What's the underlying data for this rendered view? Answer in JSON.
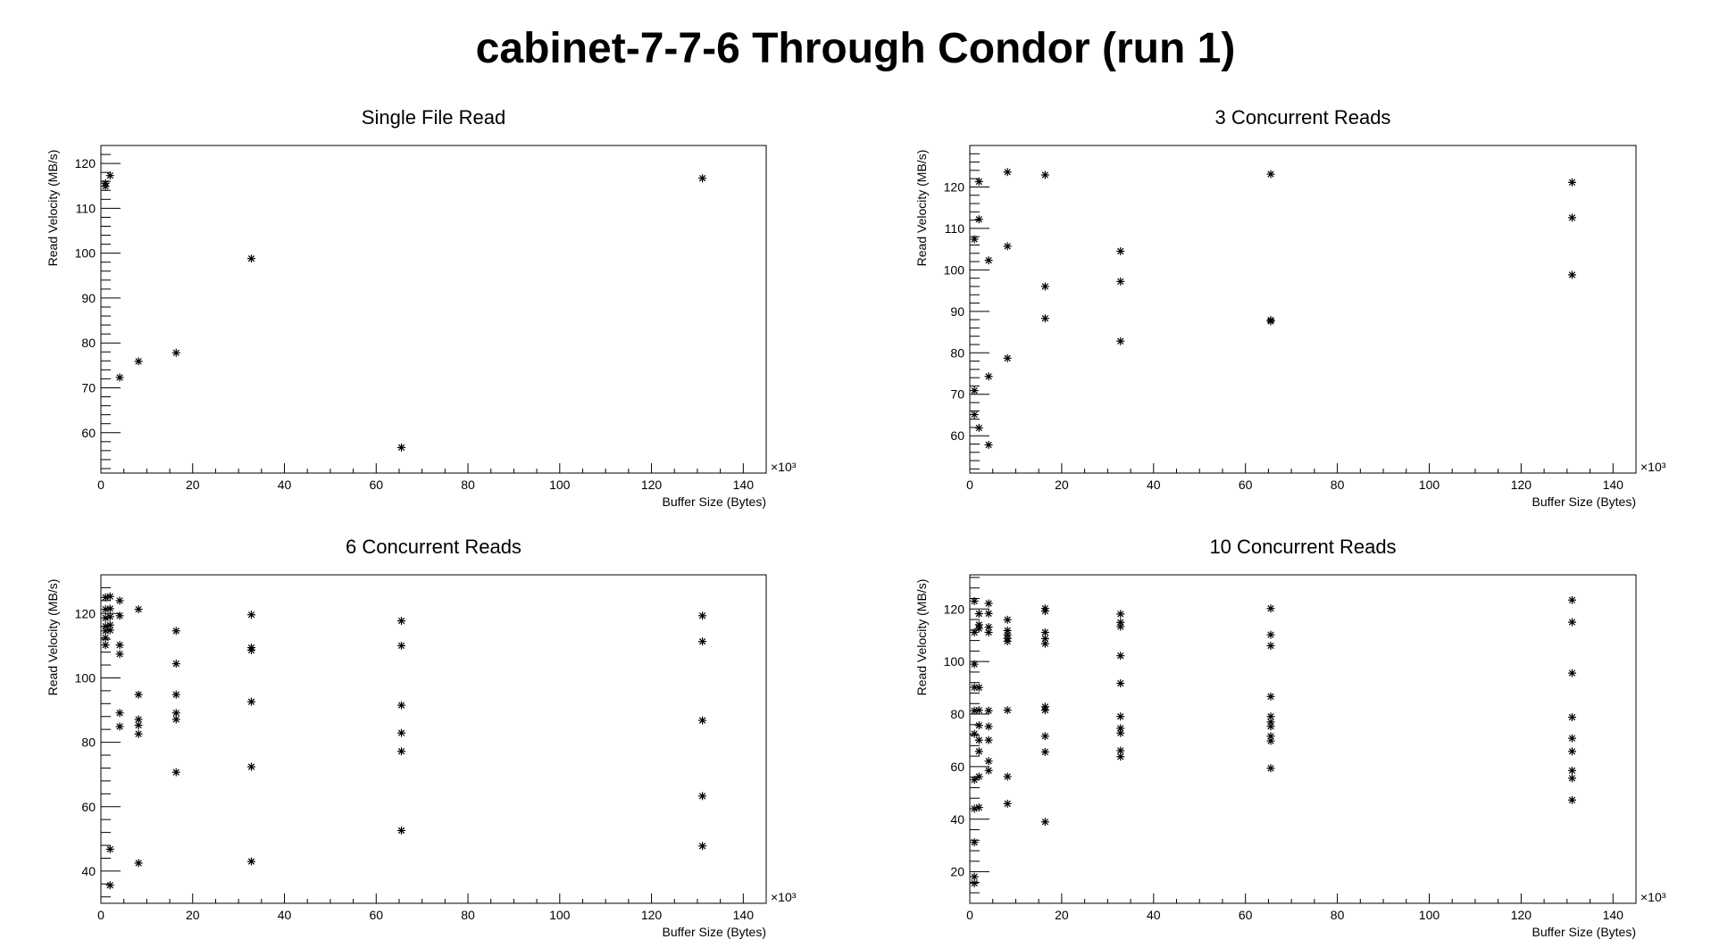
{
  "page": {
    "title": "cabinet-7-7-6 Through Condor (run 1)"
  },
  "chart_data": [
    {
      "type": "scatter",
      "title": "Single File Read",
      "xlabel": "Buffer Size (Bytes)",
      "ylabel": "Read Velocity (MB/s)",
      "x_multiplier": "×10³",
      "xlim": [
        0,
        145
      ],
      "ylim": [
        51,
        124
      ],
      "xticks": [
        0,
        20,
        40,
        60,
        80,
        100,
        120,
        140
      ],
      "yticks": [
        60,
        70,
        80,
        90,
        100,
        110,
        120
      ],
      "points": [
        [
          1.0,
          114.9
        ],
        [
          1.0,
          115.6
        ],
        [
          2.0,
          117.3
        ],
        [
          4.1,
          72.3
        ],
        [
          8.2,
          75.9
        ],
        [
          16.4,
          77.8
        ],
        [
          32.8,
          98.8
        ],
        [
          65.5,
          56.7
        ],
        [
          131.1,
          116.7
        ]
      ]
    },
    {
      "type": "scatter",
      "title": "3 Concurrent Reads",
      "xlabel": "Buffer Size (Bytes)",
      "ylabel": "Read Velocity (MB/s)",
      "x_multiplier": "×10³",
      "xlim": [
        0,
        145
      ],
      "ylim": [
        51,
        130
      ],
      "xticks": [
        0,
        20,
        40,
        60,
        80,
        100,
        120,
        140
      ],
      "yticks": [
        60,
        70,
        80,
        90,
        100,
        110,
        120
      ],
      "points": [
        [
          1.0,
          107.4
        ],
        [
          1.0,
          70.9
        ],
        [
          1.0,
          65.1
        ],
        [
          2.0,
          121.3
        ],
        [
          2.0,
          112.2
        ],
        [
          2.0,
          61.9
        ],
        [
          4.1,
          102.3
        ],
        [
          4.1,
          74.3
        ],
        [
          4.1,
          57.8
        ],
        [
          8.2,
          123.6
        ],
        [
          8.2,
          105.7
        ],
        [
          8.2,
          78.7
        ],
        [
          16.4,
          122.9
        ],
        [
          16.4,
          96.0
        ],
        [
          16.4,
          88.3
        ],
        [
          32.8,
          104.5
        ],
        [
          32.8,
          97.2
        ],
        [
          32.8,
          82.8
        ],
        [
          65.5,
          123.1
        ],
        [
          65.5,
          87.9
        ],
        [
          65.5,
          87.6
        ],
        [
          131.1,
          121.1
        ],
        [
          131.1,
          112.6
        ],
        [
          131.1,
          98.8
        ]
      ]
    },
    {
      "type": "scatter",
      "title": "6 Concurrent Reads",
      "xlabel": "Buffer Size (Bytes)",
      "ylabel": "Read Velocity (MB/s)",
      "x_multiplier": "×10³",
      "xlim": [
        0,
        145
      ],
      "ylim": [
        30,
        132
      ],
      "xticks": [
        0,
        20,
        40,
        60,
        80,
        100,
        120,
        140
      ],
      "yticks": [
        40,
        60,
        80,
        100,
        120
      ],
      "points": [
        [
          1.0,
          125.0
        ],
        [
          1.0,
          121.3
        ],
        [
          1.0,
          118.6
        ],
        [
          1.0,
          116.0
        ],
        [
          1.0,
          114.6
        ],
        [
          1.0,
          112.4
        ],
        [
          1.0,
          110.2
        ],
        [
          2.0,
          125.3
        ],
        [
          2.0,
          121.5
        ],
        [
          2.0,
          119.0
        ],
        [
          2.0,
          116.4
        ],
        [
          2.0,
          114.8
        ],
        [
          2.0,
          46.8
        ],
        [
          2.0,
          35.6
        ],
        [
          4.1,
          124.0
        ],
        [
          4.1,
          119.3
        ],
        [
          4.1,
          110.2
        ],
        [
          4.1,
          107.4
        ],
        [
          4.1,
          89.1
        ],
        [
          4.1,
          84.9
        ],
        [
          8.2,
          121.3
        ],
        [
          8.2,
          94.8
        ],
        [
          8.2,
          87.1
        ],
        [
          8.2,
          85.3
        ],
        [
          8.2,
          82.6
        ],
        [
          8.2,
          42.5
        ],
        [
          16.4,
          114.6
        ],
        [
          16.4,
          104.4
        ],
        [
          16.4,
          94.8
        ],
        [
          16.4,
          89.1
        ],
        [
          16.4,
          87.1
        ],
        [
          16.4,
          70.7
        ],
        [
          32.8,
          119.6
        ],
        [
          32.8,
          109.4
        ],
        [
          32.8,
          108.6
        ],
        [
          32.8,
          92.6
        ],
        [
          32.8,
          72.4
        ],
        [
          32.8,
          43.0
        ],
        [
          65.5,
          117.7
        ],
        [
          65.5,
          110.0
        ],
        [
          65.5,
          91.5
        ],
        [
          65.5,
          82.9
        ],
        [
          65.5,
          77.2
        ],
        [
          65.5,
          52.6
        ],
        [
          131.1,
          119.3
        ],
        [
          131.1,
          111.3
        ],
        [
          131.1,
          86.8
        ],
        [
          131.1,
          63.3
        ],
        [
          131.1,
          47.8
        ]
      ]
    },
    {
      "type": "scatter",
      "title": "10 Concurrent Reads",
      "xlabel": "Buffer Size (Bytes)",
      "ylabel": "Read Velocity (MB/s)",
      "x_multiplier": "×10³",
      "xlim": [
        0,
        145
      ],
      "ylim": [
        8,
        133
      ],
      "xticks": [
        0,
        20,
        40,
        60,
        80,
        100,
        120,
        140
      ],
      "yticks": [
        20,
        40,
        60,
        80,
        100,
        120
      ],
      "points": [
        [
          1.0,
          123.0
        ],
        [
          1.0,
          111.1
        ],
        [
          1.0,
          99.0
        ],
        [
          1.0,
          90.2
        ],
        [
          1.0,
          81.3
        ],
        [
          1.0,
          72.5
        ],
        [
          1.0,
          55.0
        ],
        [
          1.0,
          44.0
        ],
        [
          1.0,
          31.2
        ],
        [
          1.0,
          18.1
        ],
        [
          1.0,
          15.6
        ],
        [
          2.0,
          118.2
        ],
        [
          2.0,
          114.0
        ],
        [
          2.0,
          112.6
        ],
        [
          2.0,
          90.1
        ],
        [
          2.0,
          81.5
        ],
        [
          2.0,
          75.7
        ],
        [
          2.0,
          70.1
        ],
        [
          2.0,
          65.8
        ],
        [
          2.0,
          56.2
        ],
        [
          2.0,
          44.5
        ],
        [
          4.1,
          122.1
        ],
        [
          4.1,
          118.3
        ],
        [
          4.1,
          113.1
        ],
        [
          4.1,
          111.1
        ],
        [
          4.1,
          81.3
        ],
        [
          4.1,
          75.3
        ],
        [
          4.1,
          70.1
        ],
        [
          4.1,
          62.1
        ],
        [
          4.1,
          58.5
        ],
        [
          8.2,
          115.9
        ],
        [
          8.2,
          111.8
        ],
        [
          8.2,
          110.2
        ],
        [
          8.2,
          108.8
        ],
        [
          8.2,
          107.7
        ],
        [
          8.2,
          81.5
        ],
        [
          8.2,
          56.2
        ],
        [
          8.2,
          45.9
        ],
        [
          16.4,
          120.2
        ],
        [
          16.4,
          119.2
        ],
        [
          16.4,
          111.1
        ],
        [
          16.4,
          108.7
        ],
        [
          16.4,
          106.8
        ],
        [
          16.4,
          82.8
        ],
        [
          16.4,
          81.5
        ],
        [
          16.4,
          71.6
        ],
        [
          16.4,
          65.6
        ],
        [
          16.4,
          39.0
        ],
        [
          32.8,
          118.1
        ],
        [
          32.8,
          114.9
        ],
        [
          32.8,
          113.3
        ],
        [
          32.8,
          102.2
        ],
        [
          32.8,
          91.7
        ],
        [
          32.8,
          79.1
        ],
        [
          32.8,
          74.6
        ],
        [
          32.8,
          72.8
        ],
        [
          32.8,
          66.1
        ],
        [
          32.8,
          63.8
        ],
        [
          65.5,
          120.2
        ],
        [
          65.5,
          110.2
        ],
        [
          65.5,
          106.0
        ],
        [
          65.5,
          86.7
        ],
        [
          65.5,
          79.1
        ],
        [
          65.5,
          77.0
        ],
        [
          65.5,
          75.3
        ],
        [
          65.5,
          71.6
        ],
        [
          65.5,
          69.8
        ],
        [
          65.5,
          59.4
        ],
        [
          131.1,
          123.4
        ],
        [
          131.1,
          115.0
        ],
        [
          131.1,
          95.6
        ],
        [
          131.1,
          78.8
        ],
        [
          131.1,
          70.8
        ],
        [
          131.1,
          65.8
        ],
        [
          131.1,
          58.5
        ],
        [
          131.1,
          55.6
        ],
        [
          131.1,
          47.3
        ]
      ]
    }
  ]
}
